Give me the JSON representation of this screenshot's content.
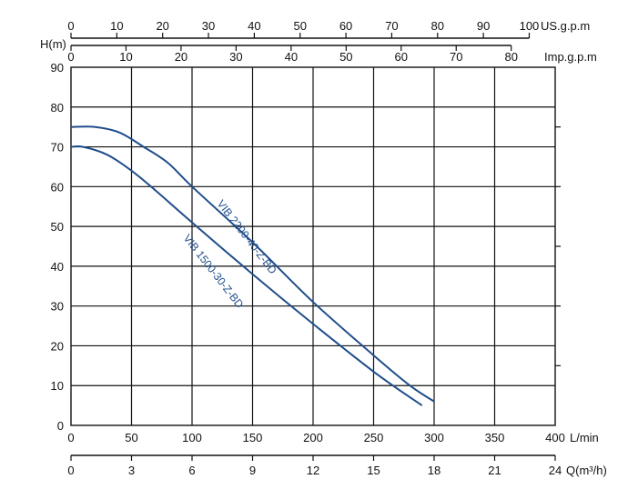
{
  "chart_data": {
    "type": "line",
    "ylabel": "H(m)",
    "xlabel": "L/min",
    "xlim": [
      0,
      400
    ],
    "ylim": [
      0,
      90
    ],
    "x_ticks": [
      "0",
      "50",
      "100",
      "150",
      "200",
      "250",
      "300",
      "350",
      "400"
    ],
    "y_ticks": [
      "0",
      "10",
      "20",
      "30",
      "40",
      "50",
      "60",
      "70",
      "80",
      "90"
    ],
    "grid": true,
    "secondary_axes": [
      {
        "unit": "US.g.p.m",
        "position": "top",
        "ticks": [
          "0",
          "10",
          "20",
          "30",
          "40",
          "50",
          "60",
          "70",
          "80",
          "90",
          "100"
        ],
        "factor_per_lmin": 0.264172
      },
      {
        "unit": "Imp.g.p.m",
        "position": "top",
        "ticks": [
          "0",
          "10",
          "20",
          "30",
          "40",
          "50",
          "60",
          "70",
          "80"
        ],
        "factor_per_lmin": 0.219969
      },
      {
        "unit": "Q(m³/h)",
        "position": "bottom",
        "ticks": [
          "0",
          "3",
          "6",
          "9",
          "12",
          "15",
          "18",
          "21",
          "24"
        ],
        "factor_per_lmin": 0.06
      }
    ],
    "series": [
      {
        "name": "VIB 2200-40-Z-BD",
        "color": "#1f4e8c",
        "x": [
          0,
          20,
          40,
          60,
          80,
          100,
          150,
          200,
          250,
          280,
          300
        ],
        "y": [
          75,
          75,
          73.6,
          70,
          66,
          60,
          46,
          31,
          17.6,
          10,
          6
        ]
      },
      {
        "name": "VIB 1500-30-Z-BD",
        "color": "#1f4e8c",
        "x": [
          0,
          10,
          30,
          50,
          70,
          100,
          150,
          200,
          250,
          290
        ],
        "y": [
          70,
          70,
          68,
          64,
          59,
          51,
          38,
          25.5,
          13.5,
          5
        ]
      }
    ]
  }
}
